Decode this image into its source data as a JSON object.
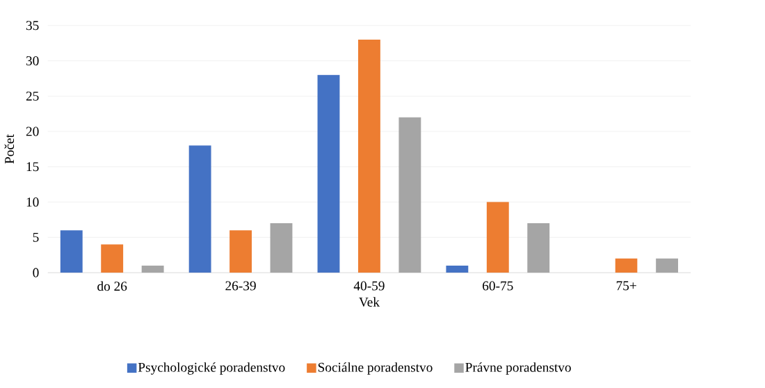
{
  "chart_data": {
    "type": "bar",
    "xlabel": "Vek",
    "ylabel": "Počet",
    "categories": [
      "do 26",
      "26-39",
      "40-59",
      "60-75",
      "75+"
    ],
    "series": [
      {
        "name": "Psychologické poradenstvo",
        "color": "#4472c4",
        "values": [
          6,
          18,
          28,
          1,
          0
        ]
      },
      {
        "name": "Sociálne poradenstvo",
        "color": "#ed7d31",
        "values": [
          4,
          6,
          33,
          10,
          2
        ]
      },
      {
        "name": "Právne poradenstvo",
        "color": "#a5a5a5",
        "values": [
          1,
          7,
          22,
          7,
          2
        ]
      }
    ],
    "ylim": [
      0,
      35
    ],
    "yticks": [
      0,
      5,
      10,
      15,
      20,
      25,
      30,
      35
    ],
    "grid": "y",
    "legend": "bottom"
  }
}
